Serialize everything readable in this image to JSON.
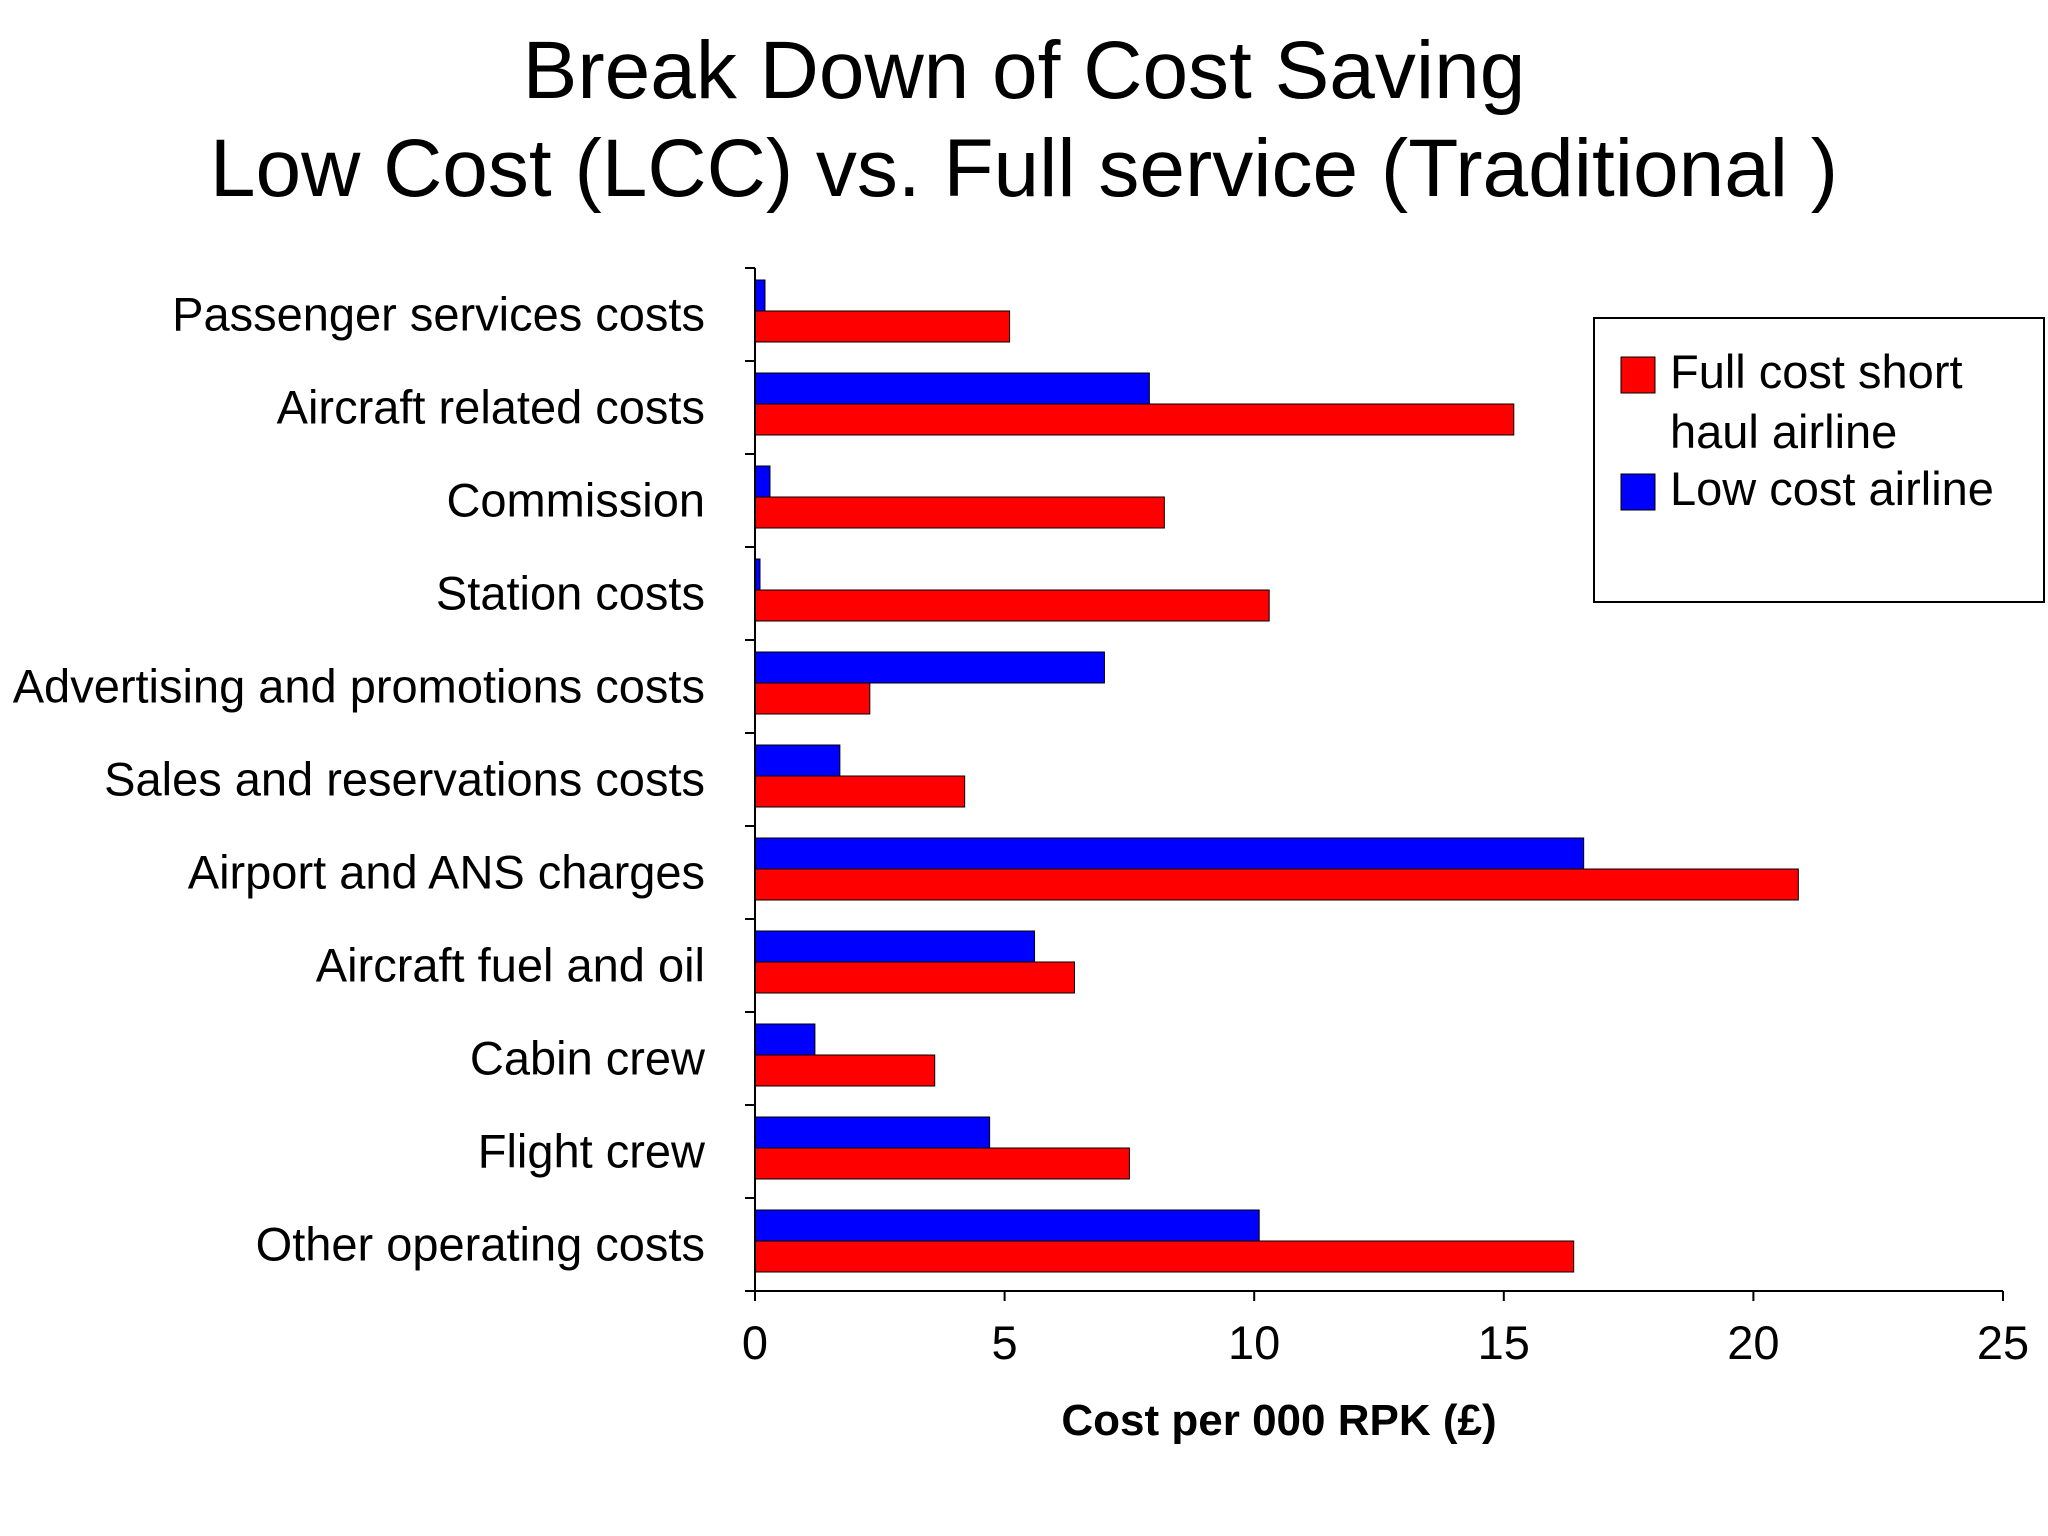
{
  "header": {
    "title_line1": "Break Down of Cost Saving",
    "title_line2": "Low Cost (LCC) vs. Full service (Traditional )"
  },
  "chart_data": {
    "type": "bar",
    "orientation": "horizontal",
    "title": "Break Down of Cost Saving Low Cost (LCC) vs. Full service (Traditional )",
    "xlabel": "Cost per 000 RPK (£)",
    "ylabel": "",
    "xlim": [
      0,
      25
    ],
    "xticks": [
      0,
      5,
      10,
      15,
      20,
      25
    ],
    "grid": false,
    "legend_position": "top-right",
    "categories": [
      "Passenger services costs",
      "Aircraft related costs",
      "Commission",
      "Station costs",
      "Advertising and promotions costs",
      "Sales and reservations costs",
      "Airport and ANS charges",
      "Aircraft fuel and oil",
      "Cabin crew",
      "Flight crew",
      "Other operating costs"
    ],
    "series": [
      {
        "name": "Low cost airline",
        "color": "#0000ff",
        "values": [
          0.2,
          7.9,
          0.3,
          0.1,
          7.0,
          1.7,
          16.6,
          5.6,
          1.2,
          4.7,
          10.1
        ]
      },
      {
        "name": "Full cost short haul airline",
        "color": "#ff0000",
        "values": [
          5.1,
          15.2,
          8.2,
          10.3,
          2.3,
          4.2,
          20.9,
          6.4,
          3.6,
          7.5,
          16.4
        ]
      }
    ],
    "legend": [
      {
        "lines": [
          "Full cost short",
          "haul airline"
        ],
        "color": "#ff0000"
      },
      {
        "lines": [
          "Low cost airline"
        ],
        "color": "#0000ff"
      }
    ]
  }
}
